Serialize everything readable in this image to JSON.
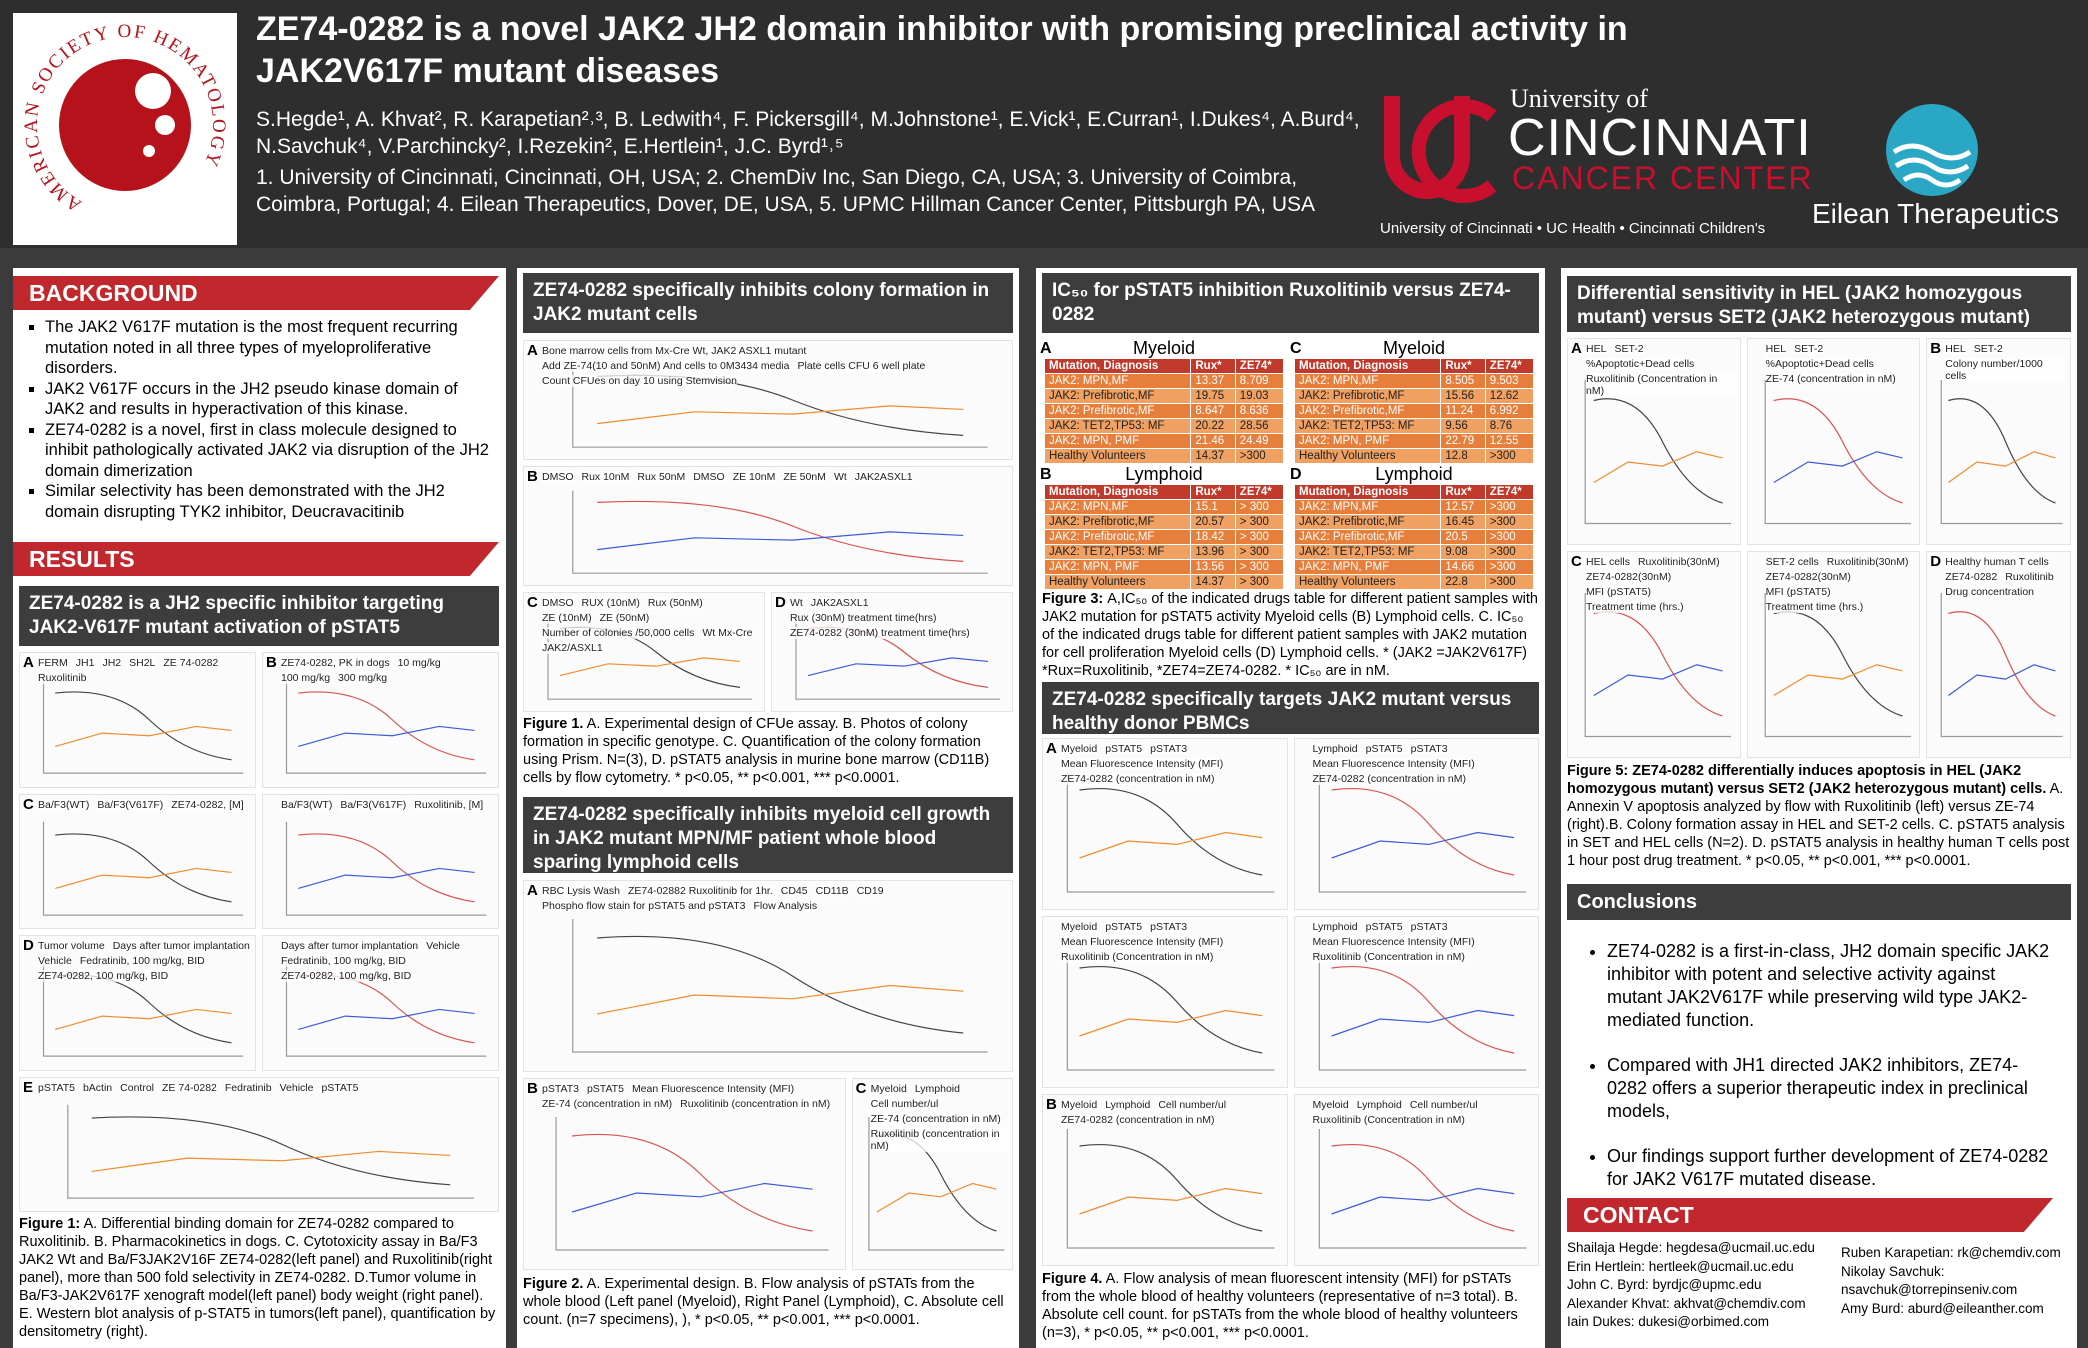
{
  "header": {
    "title": "ZE74-0282 is a novel JAK2 JH2 domain inhibitor with promising preclinical activity in JAK2V617F mutant diseases",
    "authors": "S.Hegde¹, A. Khvat², R. Karapetian²˒³, B. Ledwith⁴, F. Pickersgill⁴, M.Johnstone¹, E.Vick¹, E.Curran¹, I.Dukes⁴, A.Burd⁴, N.Savchuk⁴, V.Parchincky², I.Rezekin², E.Hertlein¹, J.C. Byrd¹˒⁵",
    "affiliations": "1. University of Cincinnati,  Cincinnati, OH, USA; 2. ChemDiv Inc, San Diego, CA, USA;  3. University of Coimbra, Coimbra, Portugal;  4. Eilean Therapeutics, Dover, DE, USA, 5. UPMC Hillman Cancer Center, Pittsburgh PA, USA"
  },
  "logos": {
    "ash": "AMERICAN SOCIETY OF HEMATOLOGY",
    "uc": [
      "University of",
      "CINCINNATI",
      "CANCER CENTER",
      "University of Cincinnati • UC Health • Cincinnati Children's"
    ],
    "eilean": "Eilean Therapeutics"
  },
  "background": {
    "heading": "BACKGROUND",
    "bullets": [
      "The JAK2 V617F mutation is the most frequent recurring mutation noted in all three types of myeloproliferative disorders.",
      "JAK2 V617F occurs in the JH2 pseudo kinase domain of JAK2 and results in hyperactivation of this kinase.",
      "ZE74-0282 is a novel, first in class molecule designed to inhibit pathologically activated JAK2 via disruption of the JH2 domain dimerization",
      "Similar selectivity has been demonstrated with the JH2 domain disrupting TYK2 inhibitor, Deucravacitinib"
    ]
  },
  "results": {
    "heading": "RESULTS"
  },
  "panel1": {
    "title": "ZE74-0282 is a JH2 specific inhibitor targeting JAK2-V617F mutant activation of pSTAT5",
    "cells": [
      {
        "label": "A",
        "texts": [
          "FERM",
          "JH1",
          "JH2",
          "SH2L",
          "ZE 74-0282",
          "Ruxolitinib"
        ]
      },
      {
        "label": "B",
        "texts": [
          "ZE74-0282, PK in dogs",
          "10 mg/kg",
          "100 mg/kg",
          "300 mg/kg"
        ]
      },
      {
        "label": "C",
        "texts": [
          "Ba/F3(WT)",
          "Ba/F3(V617F)",
          "ZE74-0282, [M]"
        ]
      },
      {
        "texts": [
          "Ba/F3(WT)",
          "Ba/F3(V617F)",
          "Ruxolitinib, [M]"
        ]
      },
      {
        "label": "D",
        "texts": [
          "Tumor volume",
          "Days after tumor implantation",
          "Vehicle",
          "Fedratinib, 100 mg/kg, BID",
          "ZE74-0282, 100 mg/kg, BID"
        ]
      },
      {
        "texts": [
          "Days after tumor implantation",
          "Vehicle",
          "Fedratinib, 100 mg/kg, BID",
          "ZE74-0282, 100 mg/kg, BID"
        ]
      },
      {
        "label": "E",
        "texts": [
          "pSTAT5",
          "bActin",
          "Control",
          "ZE 74-0282",
          "Fedratinib",
          "Vehicle",
          "pSTAT5"
        ]
      }
    ],
    "caption": {
      "lead": "Figure 1:",
      "text": " A. Differential binding domain for ZE74-0282 compared to Ruxolitinib.  B. Pharmacokinetics in dogs.  C. Cytotoxicity assay in Ba/F3 JAK2 Wt and Ba/F3JAK2V16F ZE74-0282(left panel) and Ruxolitinib(right panel), more than 500 fold selectivity in ZE74-0282. D.Tumor volume in Ba/F3-JAK2V617F xenograft model(left panel) body weight (right panel). E. Western blot analysis of p-STAT5 in tumors(left panel), quantification by densitometry (right)."
    }
  },
  "panel2": {
    "title": "ZE74-0282 specifically inhibits colony formation in JAK2 mutant cells",
    "cells": [
      {
        "label": "A",
        "texts": [
          "Bone marrow cells from Mx-Cre Wt, JAK2 ASXL1 mutant",
          "Add ZE-74(10 and 50nM) And cells to 0M3434 media",
          "Plate cells CFU 6 well plate",
          "Count CFUes on day 10 using Stemvision"
        ]
      },
      {
        "label": "B",
        "texts": [
          "DMSO",
          "Rux 10nM",
          "Rux 50nM",
          "DMSO",
          "ZE 10nM",
          "ZE 50nM",
          "Wt",
          "JAK2ASXL1"
        ]
      },
      {
        "label": "C",
        "texts": [
          "DMSO",
          "RUX (10nM)",
          "Rux (50nM)",
          "ZE (10nM)",
          "ZE (50nM)",
          "Number of colonies /50,000 cells",
          "Wt Mx-Cre",
          "JAK2/ASXL1"
        ]
      },
      {
        "label": "D",
        "texts": [
          "Wt",
          "JAK2ASXL1",
          "Rux (30nM) treatment time(hrs)",
          "ZE74-0282 (30nM) treatment time(hrs)"
        ]
      }
    ],
    "caption": {
      "lead": "Figure 1.",
      "text": " A. Experimental design of CFUe assay. B. Photos of colony formation in specific genotype. C. Quantification of the colony formation using Prism. N=(3), D. pSTAT5 analysis in murine bone marrow (CD11B) cells by flow cytometry. * p<0.05, ** p<0.001, *** p<0.0001."
    }
  },
  "panel3": {
    "title": "ZE74-0282 specifically inhibits myeloid cell growth in JAK2 mutant MPN/MF patient whole blood sparing lymphoid cells",
    "cells": [
      {
        "label": "A",
        "texts": [
          "RBC Lysis Wash",
          "ZE74-02882 Ruxolitinib for 1hr.",
          "CD45",
          "CD11B",
          "CD19",
          "Phospho flow stain for pSTAT5 and pSTAT3",
          "Flow Analysis"
        ]
      },
      {
        "label": "B",
        "texts": [
          "pSTAT3",
          "pSTAT5",
          "Mean Fluorescence Intensity (MFI)",
          "ZE-74 (concentration in nM)",
          "Ruxolitinib (concentration in nM)"
        ]
      },
      {
        "label": "C",
        "texts": [
          "Myeloid",
          "Lymphoid",
          "Cell number/ul",
          "ZE-74 (concentration in nM)",
          "Ruxolitinib (concentration in nM)"
        ]
      }
    ],
    "caption": {
      "lead": "Figure 2.",
      "text": " A. Experimental design. B. Flow analysis of pSTATs from the whole blood (Left panel (Myeloid), Right Panel (Lymphoid), C. Absolute cell count. (n=7 specimens), ), * p<0.05, ** p<0.001, *** p<0.0001."
    }
  },
  "ic50": {
    "title": "IC₅₀ for pSTAT5 inhibition Ruxolitinib versus ZE74-0282",
    "tables": [
      {
        "label": "A",
        "title": "Myeloid",
        "header": [
          "Mutation, Diagnosis",
          "Rux*",
          "ZE74*"
        ],
        "rows": [
          [
            "JAK2: MPN,MF",
            "13.37",
            "8.709"
          ],
          [
            "JAK2: Prefibrotic,MF",
            "19.75",
            "19.03"
          ],
          [
            "JAK2: Prefibrotic,MF",
            "8.647",
            "8.636"
          ],
          [
            "JAK2: TET2,TP53: MF",
            "20.22",
            "28.56"
          ],
          [
            "JAK2: MPN, PMF",
            "21.46",
            "24.49"
          ],
          [
            "Healthy Volunteers",
            "14.37",
            ">300"
          ]
        ]
      },
      {
        "label": "C",
        "title": "Myeloid",
        "header": [
          "Mutation, Diagnosis",
          "Rux*",
          "ZE74*"
        ],
        "rows": [
          [
            "JAK2: MPN,MF",
            "8.505",
            "9.503"
          ],
          [
            "JAK2: Prefibrotic,MF",
            "15.56",
            "12.62"
          ],
          [
            "JAK2: Prefibrotic,MF",
            "11.24",
            "6.992"
          ],
          [
            "JAK2: TET2,TP53: MF",
            "9.56",
            "8.76"
          ],
          [
            "JAK2: MPN, PMF",
            "22.79",
            "12.55"
          ],
          [
            "Healthy Volunteers",
            "12.8",
            ">300"
          ]
        ]
      },
      {
        "label": "B",
        "title": "Lymphoid",
        "header": [
          "Mutation, Diagnosis",
          "Rux*",
          "ZE74*"
        ],
        "rows": [
          [
            "JAK2: MPN,MF",
            "15.1",
            "> 300"
          ],
          [
            "JAK2: Prefibrotic,MF",
            "20.57",
            "> 300"
          ],
          [
            "JAK2: Prefibrotic,MF",
            "18.42",
            "> 300"
          ],
          [
            "JAK2: TET2,TP53: MF",
            "13.96",
            "> 300"
          ],
          [
            "JAK2: MPN, PMF",
            "13.56",
            "> 300"
          ],
          [
            "Healthy Volunteers",
            "14.37",
            "> 300"
          ]
        ]
      },
      {
        "label": "D",
        "title": "Lymphoid",
        "header": [
          "Mutation, Diagnosis",
          "Rux*",
          "ZE74*"
        ],
        "rows": [
          [
            "JAK2: MPN,MF",
            "12.57",
            ">300"
          ],
          [
            "JAK2: Prefibrotic,MF",
            "16.45",
            ">300"
          ],
          [
            "JAK2: Prefibrotic,MF",
            "20.5",
            ">300"
          ],
          [
            "JAK2: TET2,TP53: MF",
            "9.08",
            ">300"
          ],
          [
            "JAK2: MPN, PMF",
            "14.66",
            ">300"
          ],
          [
            "Healthy Volunteers",
            "22.8",
            ">300"
          ]
        ]
      }
    ],
    "caption": {
      "lead": "Figure 3: ",
      "text": "A,IC₅₀ of the indicated drugs table for different patient samples with JAK2 mutation for pSTAT5 activity Myeloid cells (B) Lymphoid cells. C. IC₅₀ of the indicated drugs table for different patient samples with JAK2 mutation for cell proliferation Myeloid cells (D) Lymphoid cells. * (JAK2 =JAK2V617F) *Rux=Ruxolitinib, *ZE74=ZE74-0282. * IC₅₀ are in nM."
    }
  },
  "panel4": {
    "title": "ZE74-0282 specifically targets JAK2 mutant versus healthy donor PBMCs",
    "cells": [
      {
        "label": "A",
        "texts": [
          "Myeloid",
          "pSTAT5",
          "pSTAT3",
          "Mean Fluorescence Intensity (MFI)",
          "ZE74-0282 (concentration in nM)"
        ]
      },
      {
        "texts": [
          "Lymphoid",
          "pSTAT5",
          "pSTAT3",
          "Mean Fluorescence Intensity (MFI)",
          "ZE74-0282 (concentration in nM)"
        ]
      },
      {
        "texts": [
          "Myeloid",
          "pSTAT5",
          "pSTAT3",
          "Mean Fluorescence Intensity (MFI)",
          "Ruxolitinib (Concentration in nM)"
        ]
      },
      {
        "texts": [
          "Lymphoid",
          "pSTAT5",
          "pSTAT3",
          "Mean Fluorescence Intensity (MFI)",
          "Ruxolitinib (Concentration in nM)"
        ]
      },
      {
        "label": "B",
        "texts": [
          "Myeloid",
          "Lymphoid",
          "Cell number/ul",
          "ZE74-0282 (concentration in nM)"
        ]
      },
      {
        "texts": [
          "Myeloid",
          "Lymphoid",
          "Cell number/ul",
          "Ruxolitinib (Concentration in nM)"
        ]
      }
    ],
    "caption": {
      "lead": "Figure 4.",
      "text": " A. Flow analysis of mean fluorescent intensity (MFI) for pSTATs from the whole blood of healthy volunteers (representative of n=3 total). B. Absolute cell count. for pSTATs from the whole blood of healthy volunteers (n=3), * p<0.05, ** p<0.001, *** p<0.0001."
    }
  },
  "panel5": {
    "title": "Differential sensitivity in HEL (JAK2 homozygous mutant) versus SET2 (JAK2 heterozygous mutant)",
    "cells": [
      {
        "label": "A",
        "texts": [
          "HEL",
          "SET-2",
          "%Apoptotic+Dead cells",
          "Ruxolitinib (Concentration in nM)"
        ]
      },
      {
        "texts": [
          "HEL",
          "SET-2",
          "%Apoptotic+Dead cells",
          "ZE-74 (concentration in nM)"
        ]
      },
      {
        "label": "B",
        "texts": [
          "HEL",
          "SET-2",
          "Colony number/1000 cells"
        ]
      },
      {
        "label": "C",
        "texts": [
          "HEL cells",
          "Ruxolitinib(30nM)",
          "ZE74-0282(30nM)",
          "MFI (pSTAT5)",
          "Treatment time (hrs.)"
        ]
      },
      {
        "texts": [
          "SET-2 cells",
          "Ruxolitinib(30nM)",
          "ZE74-0282(30nM)",
          "MFI (pSTAT5)",
          "Treatment time (hrs.)"
        ]
      },
      {
        "label": "D",
        "texts": [
          "Healthy human T cells",
          "ZE74-0282",
          "Ruxolitinib",
          "Drug concentration"
        ]
      }
    ],
    "caption": {
      "lead": "Figure 5: ZE74-0282 differentially induces apoptosis in HEL (JAK2 homozygous mutant) versus SET2 (JAK2 heterozygous mutant) cells.",
      "text": " A. Annexin V apoptosis analyzed by flow with Ruxolitinib (left) versus ZE-74 (right).B. Colony formation assay in HEL and SET-2 cells. C. pSTAT5 analysis in SET and HEL cells (N=2). D. pSTAT5 analysis in healthy human T cells post 1 hour post drug treatment. * p<0.05, ** p<0.001, *** p<0.0001."
    }
  },
  "conclusions": {
    "heading": "Conclusions",
    "bullets": [
      "ZE74-0282 is a first-in-class, JH2 domain specific JAK2 inhibitor with potent and selective activity against mutant JAK2V617F while preserving wild type JAK2-mediated function.",
      "Compared with JH1 directed JAK2 inhibitors, ZE74-0282 offers a superior therapeutic index in preclinical models,",
      "Our findings support further development of ZE74-0282 for JAK2 V617F mutated disease."
    ]
  },
  "contact": {
    "heading": "CONTACT",
    "left": [
      "Shailaja Hegde: hegdesa@ucmail.uc.edu",
      "Erin Hertlein: hertleek@ucmail.uc.edu",
      "John C. Byrd: byrdjc@upmc.edu",
      "Alexander Khvat: akhvat@chemdiv.com",
      "Iain Dukes: dukesi@orbimed.com"
    ],
    "right": [
      "Ruben Karapetian: rk@chemdiv.com",
      "Nikolay Savchuk:",
      "nsavchuk@torrepinseniv.com",
      "Amy Burd: aburd@eileanther.com"
    ]
  }
}
